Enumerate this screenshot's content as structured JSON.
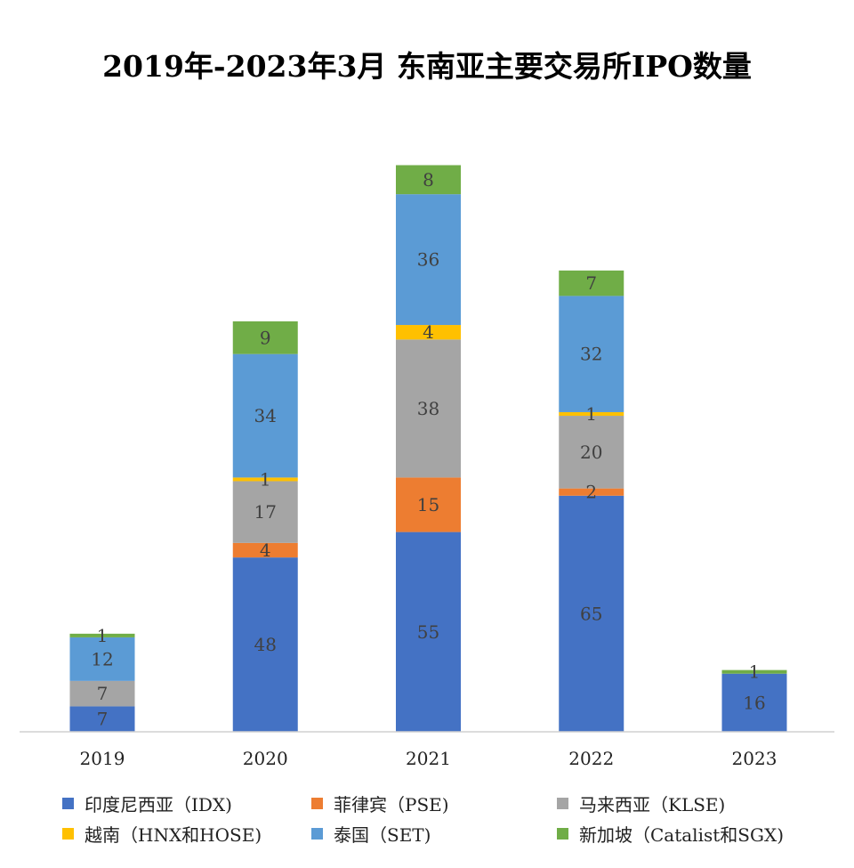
{
  "title": "2019年-2023年3月 东南亚主要交易所IPO数量",
  "chart_data": {
    "type": "bar",
    "stacked": true,
    "title": "2019年-2023年3月 东南亚主要交易所IPO数量",
    "xlabel": "",
    "ylabel": "",
    "categories": [
      "2019",
      "2020",
      "2021",
      "2022",
      "2023"
    ],
    "grid": false,
    "legend_position": "bottom",
    "series": [
      {
        "name": "印度尼西亚（IDX)",
        "color": "#4472C4",
        "values": [
          7,
          48,
          55,
          65,
          16
        ]
      },
      {
        "name": "菲律宾（PSE)",
        "color": "#ED7D31",
        "values": [
          0,
          4,
          15,
          2,
          0
        ]
      },
      {
        "name": "马来西亚（KLSE)",
        "color": "#A5A5A5",
        "values": [
          7,
          17,
          38,
          20,
          0
        ]
      },
      {
        "name": "越南（HNX和HOSE)",
        "color": "#FFC000",
        "values": [
          0,
          1,
          4,
          1,
          0
        ]
      },
      {
        "name": "泰国（SET)",
        "color": "#5B9BD5",
        "values": [
          12,
          34,
          36,
          32,
          0
        ]
      },
      {
        "name": "新加坡（Catalist和SGX)",
        "color": "#70AD47",
        "values": [
          1,
          9,
          8,
          7,
          1
        ]
      }
    ]
  }
}
